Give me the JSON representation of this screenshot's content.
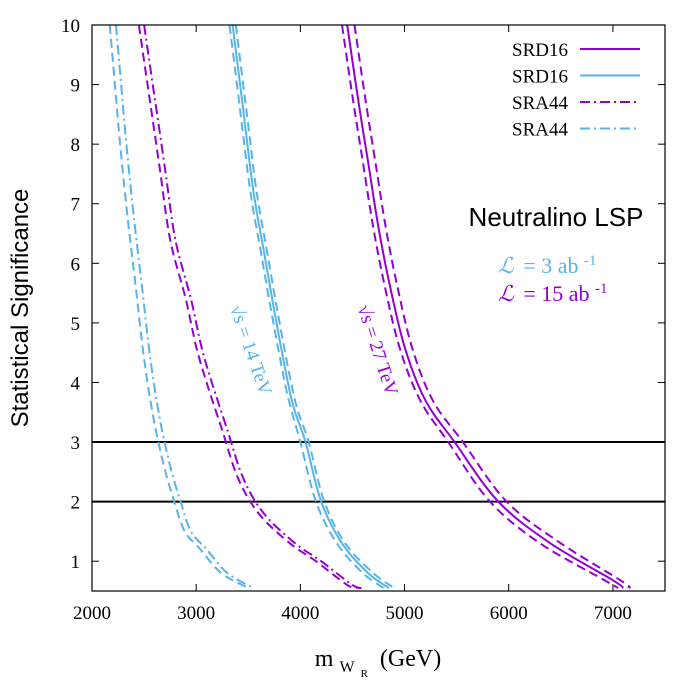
{
  "chart_data": {
    "type": "line",
    "xlabel": "m",
    "xlabel_sub": "W",
    "xlabel_subsub": "R",
    "xlabel_unit": "(GeV)",
    "ylabel": "Statistical Significance",
    "xlim": [
      2000,
      7500
    ],
    "ylim": [
      0.5,
      10
    ],
    "xticks": [
      2000,
      3000,
      4000,
      5000,
      6000,
      7000
    ],
    "yticks": [
      1,
      2,
      3,
      4,
      5,
      6,
      7,
      8,
      9,
      10
    ],
    "hlines": [
      2,
      3
    ],
    "colors": {
      "purple": "#9400d3",
      "blue": "#56b4e9",
      "black": "#000000"
    },
    "legend": [
      {
        "label": "SRD16",
        "color": "#9400d3",
        "style": "solid"
      },
      {
        "label": "SRD16",
        "color": "#56b4e9",
        "style": "solid"
      },
      {
        "label": "SRA44",
        "color": "#9400d3",
        "style": "dashdot"
      },
      {
        "label": "SRA44",
        "color": "#56b4e9",
        "style": "dashdot"
      }
    ],
    "annotations": {
      "title": "Neutralino LSP",
      "lumi_blue_prefix": "=  3 ab",
      "lumi_blue_exp": "-1",
      "lumi_purple_prefix": "= 15 ab",
      "lumi_purple_exp": "-1",
      "lumi_symbol": "ℒ",
      "energy_14": "√s = 14 TeV",
      "energy_27": "√s = 27 TeV"
    },
    "series": [
      {
        "name": "SRD16 27 TeV",
        "color": "#9400d3",
        "style": "solid",
        "x": [
          4450,
          4550,
          4650,
          4750,
          4850,
          5000,
          5200,
          5480,
          5900,
          6400,
          7000,
          7100
        ],
        "y": [
          10.0,
          8.8,
          7.7,
          6.6,
          5.7,
          4.6,
          3.7,
          3.0,
          2.0,
          1.3,
          0.68,
          0.55
        ]
      },
      {
        "name": "SRD16 27 TeV band low",
        "color": "#9400d3",
        "style": "dashed",
        "x": [
          4400,
          4500,
          4600,
          4700,
          4800,
          4950,
          5150,
          5420,
          5820,
          6300,
          6900,
          7050
        ],
        "y": [
          10.0,
          8.8,
          7.7,
          6.6,
          5.7,
          4.6,
          3.7,
          3.0,
          2.0,
          1.3,
          0.7,
          0.55
        ]
      },
      {
        "name": "SRD16 27 TeV band high",
        "color": "#9400d3",
        "style": "dashed",
        "x": [
          4520,
          4620,
          4720,
          4820,
          4920,
          5070,
          5270,
          5560,
          5980,
          6500,
          7100,
          7150
        ],
        "y": [
          10.0,
          8.8,
          7.7,
          6.6,
          5.7,
          4.6,
          3.7,
          3.0,
          2.0,
          1.3,
          0.65,
          0.55
        ]
      },
      {
        "name": "SRD16 14 TeV",
        "color": "#56b4e9",
        "style": "solid",
        "x": [
          3350,
          3450,
          3550,
          3650,
          3750,
          3880,
          3950,
          4050,
          4200,
          4400,
          4650,
          4850
        ],
        "y": [
          10.0,
          8.6,
          7.2,
          6.2,
          5.2,
          4.0,
          3.5,
          3.0,
          2.0,
          1.3,
          0.8,
          0.55
        ]
      },
      {
        "name": "SRD16 14 TeV band low",
        "color": "#56b4e9",
        "style": "dashed",
        "x": [
          3320,
          3420,
          3520,
          3620,
          3720,
          3850,
          3920,
          4000,
          4150,
          4350,
          4600,
          4800
        ],
        "y": [
          10.0,
          8.6,
          7.2,
          6.2,
          5.2,
          4.0,
          3.5,
          3.0,
          2.0,
          1.3,
          0.8,
          0.55
        ]
      },
      {
        "name": "SRD16 14 TeV band high",
        "color": "#56b4e9",
        "style": "dashed",
        "x": [
          3380,
          3480,
          3580,
          3680,
          3780,
          3910,
          3980,
          4080,
          4230,
          4430,
          4700,
          4900
        ],
        "y": [
          10.0,
          8.6,
          7.2,
          6.2,
          5.2,
          4.0,
          3.5,
          3.0,
          2.0,
          1.3,
          0.8,
          0.55
        ]
      },
      {
        "name": "SRA44 27 TeV",
        "color": "#9400d3",
        "style": "dashdot",
        "x": [
          2500,
          2600,
          2700,
          2800,
          2950,
          3050,
          3150,
          3300,
          3450,
          3650,
          3950,
          4200,
          4500,
          4600
        ],
        "y": [
          10.0,
          8.8,
          7.6,
          6.4,
          5.4,
          4.6,
          4.0,
          3.2,
          2.4,
          1.8,
          1.3,
          1.0,
          0.6,
          0.55
        ]
      },
      {
        "name": "SRA44 27 TeV band",
        "color": "#9400d3",
        "style": "dashed",
        "x": [
          2450,
          2550,
          2650,
          2750,
          2900,
          3000,
          3100,
          3250,
          3400,
          3600,
          3900,
          4150,
          4450,
          4550
        ],
        "y": [
          10.0,
          8.8,
          7.6,
          6.4,
          5.4,
          4.6,
          4.0,
          3.2,
          2.4,
          1.8,
          1.3,
          1.0,
          0.6,
          0.55
        ]
      },
      {
        "name": "SRA44 14 TeV",
        "color": "#56b4e9",
        "style": "dashdot",
        "x": [
          2230,
          2280,
          2330,
          2400,
          2480,
          2560,
          2650,
          2750,
          2850,
          2950,
          3100,
          3300,
          3550
        ],
        "y": [
          10.0,
          9.0,
          8.0,
          6.8,
          5.6,
          4.4,
          3.4,
          2.6,
          2.0,
          1.5,
          1.2,
          0.8,
          0.55
        ]
      },
      {
        "name": "SRA44 14 TeV band",
        "color": "#56b4e9",
        "style": "dashed",
        "x": [
          2170,
          2220,
          2270,
          2340,
          2420,
          2500,
          2590,
          2690,
          2790,
          2890,
          3040,
          3240,
          3500
        ],
        "y": [
          10.0,
          9.0,
          8.0,
          6.8,
          5.6,
          4.4,
          3.4,
          2.6,
          2.0,
          1.5,
          1.2,
          0.8,
          0.55
        ]
      }
    ]
  }
}
